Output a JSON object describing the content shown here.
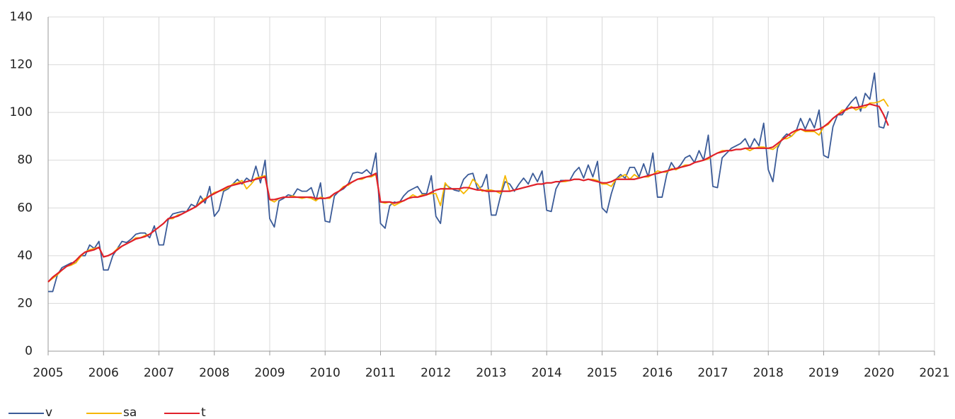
{
  "chart_data": {
    "type": "line",
    "xlim": [
      2005,
      2021
    ],
    "xticks": [
      2005,
      2006,
      2007,
      2008,
      2009,
      2010,
      2011,
      2012,
      2013,
      2014,
      2015,
      2016,
      2017,
      2018,
      2019,
      2020,
      2021
    ],
    "ylim": [
      0,
      140
    ],
    "yticks": [
      0,
      20,
      40,
      60,
      80,
      100,
      120,
      140
    ],
    "grid": true,
    "legend": "bottom-left",
    "x": [
      2005.0,
      2005.083,
      2005.167,
      2005.25,
      2005.333,
      2005.417,
      2005.5,
      2005.583,
      2005.667,
      2005.75,
      2005.833,
      2005.917,
      2006.0,
      2006.083,
      2006.167,
      2006.25,
      2006.333,
      2006.417,
      2006.5,
      2006.583,
      2006.667,
      2006.75,
      2006.833,
      2006.917,
      2007.0,
      2007.083,
      2007.167,
      2007.25,
      2007.333,
      2007.417,
      2007.5,
      2007.583,
      2007.667,
      2007.75,
      2007.833,
      2007.917,
      2008.0,
      2008.083,
      2008.167,
      2008.25,
      2008.333,
      2008.417,
      2008.5,
      2008.583,
      2008.667,
      2008.75,
      2008.833,
      2008.917,
      2009.0,
      2009.083,
      2009.167,
      2009.25,
      2009.333,
      2009.417,
      2009.5,
      2009.583,
      2009.667,
      2009.75,
      2009.833,
      2009.917,
      2010.0,
      2010.083,
      2010.167,
      2010.25,
      2010.333,
      2010.417,
      2010.5,
      2010.583,
      2010.667,
      2010.75,
      2010.833,
      2010.917,
      2011.0,
      2011.083,
      2011.167,
      2011.25,
      2011.333,
      2011.417,
      2011.5,
      2011.583,
      2011.667,
      2011.75,
      2011.833,
      2011.917,
      2012.0,
      2012.083,
      2012.167,
      2012.25,
      2012.333,
      2012.417,
      2012.5,
      2012.583,
      2012.667,
      2012.75,
      2012.833,
      2012.917,
      2013.0,
      2013.083,
      2013.167,
      2013.25,
      2013.333,
      2013.417,
      2013.5,
      2013.583,
      2013.667,
      2013.75,
      2013.833,
      2013.917,
      2014.0,
      2014.083,
      2014.167,
      2014.25,
      2014.333,
      2014.417,
      2014.5,
      2014.583,
      2014.667,
      2014.75,
      2014.833,
      2014.917,
      2015.0,
      2015.083,
      2015.167,
      2015.25,
      2015.333,
      2015.417,
      2015.5,
      2015.583,
      2015.667,
      2015.75,
      2015.833,
      2015.917,
      2016.0,
      2016.083,
      2016.167,
      2016.25,
      2016.333,
      2016.417,
      2016.5,
      2016.583,
      2016.667,
      2016.75,
      2016.833,
      2016.917,
      2017.0,
      2017.083,
      2017.167,
      2017.25,
      2017.333,
      2017.417,
      2017.5,
      2017.583,
      2017.667,
      2017.75,
      2017.833,
      2017.917,
      2018.0,
      2018.083,
      2018.167,
      2018.25,
      2018.333,
      2018.417,
      2018.5,
      2018.583,
      2018.667,
      2018.75,
      2018.833,
      2018.917,
      2019.0,
      2019.083,
      2019.167,
      2019.25,
      2019.333,
      2019.417,
      2019.5,
      2019.583,
      2019.667,
      2019.75,
      2019.833,
      2019.917,
      2020.0,
      2020.083,
      2020.167
    ],
    "series": [
      {
        "name": "v",
        "color": "#3b5b98",
        "values": [
          25,
          25,
          32,
          35,
          36,
          37,
          37,
          40,
          40,
          44.5,
          43,
          46,
          34,
          34,
          40,
          43,
          46,
          45.5,
          47,
          49,
          49.5,
          49.5,
          47.5,
          52.5,
          44.5,
          44.5,
          55,
          57.5,
          58,
          58.5,
          58.5,
          61.5,
          60.5,
          65,
          62,
          69,
          56.5,
          59,
          67,
          68,
          70,
          72,
          70,
          72.5,
          71,
          77.5,
          70.5,
          80,
          55.5,
          52,
          63,
          64,
          65.5,
          65,
          68,
          67,
          67,
          68.5,
          63,
          70.5,
          54.5,
          54,
          65,
          67,
          68,
          70,
          74.5,
          75,
          74.5,
          76,
          74,
          83,
          53.5,
          51.5,
          61,
          62.5,
          62,
          65,
          67,
          68,
          69,
          66,
          66,
          73.5,
          56.5,
          53.5,
          70,
          68.5,
          67.5,
          67,
          72,
          74,
          74.5,
          68,
          69,
          74,
          57,
          57,
          65,
          71,
          70,
          67,
          70,
          72.5,
          70,
          74.5,
          71,
          75.5,
          59,
          58.5,
          68,
          71.5,
          71.5,
          71.5,
          75,
          77,
          72.5,
          78,
          73,
          79.5,
          60,
          58,
          66,
          72,
          74,
          72.5,
          77,
          77,
          73,
          78.5,
          73,
          83,
          64.5,
          64.5,
          74,
          79,
          76,
          78,
          81,
          82,
          79,
          84,
          80,
          90.5,
          69,
          68.5,
          81,
          83,
          85,
          86,
          87,
          89,
          85,
          89,
          86,
          95.5,
          76,
          71,
          85,
          89,
          91,
          90,
          92,
          97.5,
          93,
          97.5,
          93.5,
          101,
          82,
          81,
          94,
          99,
          99,
          102,
          104.5,
          106.5,
          100.5,
          108,
          105.5,
          116.5,
          94,
          93.5,
          100.5
        ]
      },
      {
        "name": "sa",
        "color": "#f5b700",
        "values": [
          29,
          30.5,
          32,
          34,
          35.5,
          36,
          37,
          39.5,
          41.5,
          42.5,
          43,
          43.5,
          39.5,
          40,
          41,
          43,
          44,
          45,
          46,
          47.5,
          47.5,
          48.5,
          49,
          50.5,
          52,
          53.5,
          55.5,
          55.5,
          57,
          57.5,
          58.5,
          59.5,
          60.5,
          62.5,
          64,
          65,
          66.5,
          67,
          67.5,
          68.5,
          70,
          70.5,
          71.5,
          68,
          70,
          72.5,
          73,
          73.5,
          63.5,
          62.5,
          64,
          64.5,
          64.5,
          65,
          64.5,
          64,
          64.5,
          64,
          63,
          64.5,
          64,
          64,
          66,
          67,
          69,
          69.5,
          71,
          72,
          72,
          73,
          73,
          74,
          62.5,
          62,
          62.5,
          61,
          62,
          63,
          64,
          65.5,
          64.5,
          65.5,
          65.5,
          66,
          66,
          61,
          70.5,
          68,
          68,
          68,
          66,
          68,
          72,
          70,
          67,
          67.5,
          67.5,
          67,
          66,
          73.5,
          67,
          67.5,
          68,
          68.5,
          69,
          69.5,
          70,
          70,
          70.5,
          70.5,
          71,
          71,
          71,
          71.5,
          72,
          72,
          71.5,
          72,
          72,
          71.5,
          70,
          70,
          69,
          72,
          73,
          74,
          72,
          74,
          72.5,
          73,
          73,
          74,
          75.5,
          75,
          75,
          76.5,
          76,
          77,
          78,
          78,
          79,
          79.5,
          80,
          80.5,
          82,
          83,
          84,
          84,
          84,
          84.5,
          84.5,
          85,
          84,
          85,
          85.5,
          85.5,
          85,
          84.5,
          86,
          89,
          89,
          90,
          92,
          93,
          92,
          92,
          92,
          90.5,
          94,
          95,
          97.5,
          99,
          101,
          101,
          102.5,
          101,
          102,
          102,
          104,
          104,
          104.5,
          105.5,
          102.5
        ]
      },
      {
        "name": "t",
        "color": "#e0202b",
        "values": [
          29,
          31,
          32.5,
          34,
          35.5,
          36.5,
          38,
          40,
          41.5,
          42,
          42.5,
          43.5,
          39.5,
          40,
          41,
          42.5,
          44,
          45,
          46,
          47,
          47.5,
          48,
          49,
          50.5,
          52,
          53.5,
          55.5,
          56,
          56.5,
          57.5,
          58.5,
          59.5,
          60.5,
          62,
          63.5,
          65,
          66,
          67,
          68,
          69,
          69.5,
          70,
          70.5,
          71,
          71.5,
          72,
          72.5,
          73,
          63.5,
          63.5,
          64,
          64.5,
          64.5,
          64.5,
          64.5,
          64.5,
          64.5,
          64.5,
          64,
          64,
          64,
          64.5,
          66,
          67,
          68.5,
          70,
          71,
          72,
          72.5,
          73,
          73.5,
          74.5,
          62.5,
          62.5,
          62.5,
          62,
          62.5,
          63,
          64,
          64.5,
          64.5,
          65,
          65.5,
          66.5,
          67.5,
          68,
          68,
          68,
          68,
          68,
          68.5,
          68.5,
          68,
          67.5,
          67.5,
          67,
          67,
          67,
          67,
          67,
          67,
          67.5,
          68,
          68.5,
          69,
          69.5,
          70,
          70,
          70.5,
          70.5,
          71,
          71,
          71.5,
          71.5,
          72,
          72,
          71.5,
          72,
          71.5,
          71,
          70.5,
          70.5,
          71,
          72,
          72,
          72,
          72,
          72,
          72.5,
          73,
          73.5,
          74,
          74.5,
          75,
          75.5,
          76,
          76.5,
          77,
          77.5,
          78,
          79,
          79.5,
          80,
          81,
          82,
          83,
          83.5,
          84,
          84,
          84.5,
          84.5,
          85,
          85,
          85,
          85,
          85,
          85,
          85.5,
          87,
          88.5,
          90,
          91.5,
          92.5,
          93,
          92.5,
          92.5,
          92.5,
          93,
          94,
          95.5,
          97.5,
          99,
          100,
          101.5,
          102,
          102,
          102.5,
          103,
          103.5,
          103,
          102.5,
          99,
          94.5
        ]
      }
    ]
  }
}
